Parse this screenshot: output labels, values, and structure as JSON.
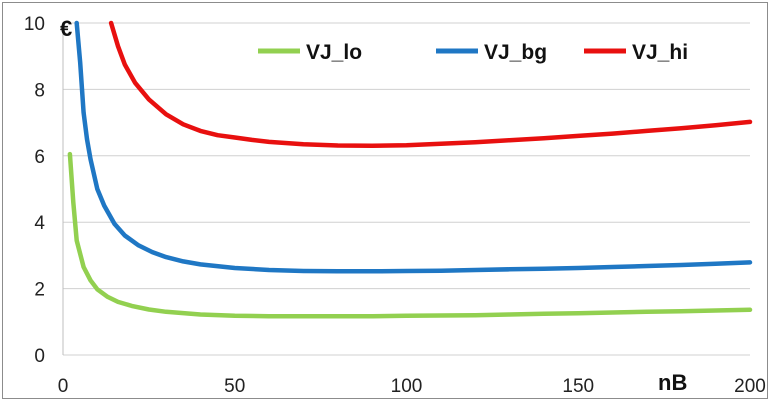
{
  "chart_data": {
    "type": "line",
    "title": "",
    "xlabel": "nB",
    "ylabel": "€",
    "xlim": [
      0,
      200
    ],
    "ylim": [
      0,
      10
    ],
    "xticks": [
      0,
      50,
      100,
      150,
      200
    ],
    "yticks": [
      0,
      2,
      4,
      6,
      8,
      10
    ],
    "grid": "horizontal",
    "legend": "top-right",
    "series": [
      {
        "name": "VJ_lo",
        "color": "#92d050",
        "points": [
          [
            2,
            6.05
          ],
          [
            3,
            4.6
          ],
          [
            4,
            3.45
          ],
          [
            6,
            2.65
          ],
          [
            8,
            2.25
          ],
          [
            10,
            1.98
          ],
          [
            13,
            1.75
          ],
          [
            16,
            1.6
          ],
          [
            20,
            1.48
          ],
          [
            25,
            1.37
          ],
          [
            30,
            1.3
          ],
          [
            40,
            1.22
          ],
          [
            50,
            1.18
          ],
          [
            60,
            1.17
          ],
          [
            70,
            1.17
          ],
          [
            80,
            1.17
          ],
          [
            90,
            1.17
          ],
          [
            100,
            1.18
          ],
          [
            110,
            1.19
          ],
          [
            120,
            1.2
          ],
          [
            130,
            1.22
          ],
          [
            140,
            1.24
          ],
          [
            150,
            1.26
          ],
          [
            160,
            1.28
          ],
          [
            170,
            1.3
          ],
          [
            180,
            1.32
          ],
          [
            190,
            1.34
          ],
          [
            200,
            1.36
          ]
        ]
      },
      {
        "name": "VJ_bg",
        "color": "#1f77c4",
        "points": [
          [
            4,
            10.0
          ],
          [
            5,
            8.8
          ],
          [
            6,
            7.3
          ],
          [
            7,
            6.5
          ],
          [
            8,
            5.9
          ],
          [
            10,
            5.0
          ],
          [
            12,
            4.5
          ],
          [
            15,
            3.95
          ],
          [
            18,
            3.6
          ],
          [
            22,
            3.3
          ],
          [
            26,
            3.1
          ],
          [
            30,
            2.95
          ],
          [
            35,
            2.82
          ],
          [
            40,
            2.73
          ],
          [
            50,
            2.62
          ],
          [
            60,
            2.56
          ],
          [
            70,
            2.53
          ],
          [
            80,
            2.52
          ],
          [
            90,
            2.52
          ],
          [
            100,
            2.53
          ],
          [
            110,
            2.54
          ],
          [
            120,
            2.56
          ],
          [
            130,
            2.58
          ],
          [
            140,
            2.6
          ],
          [
            150,
            2.62
          ],
          [
            160,
            2.65
          ],
          [
            170,
            2.68
          ],
          [
            180,
            2.71
          ],
          [
            190,
            2.75
          ],
          [
            200,
            2.79
          ]
        ]
      },
      {
        "name": "VJ_hi",
        "color": "#e8100f",
        "points": [
          [
            14,
            10.0
          ],
          [
            16,
            9.3
          ],
          [
            18,
            8.75
          ],
          [
            21,
            8.2
          ],
          [
            25,
            7.7
          ],
          [
            30,
            7.25
          ],
          [
            35,
            6.95
          ],
          [
            40,
            6.75
          ],
          [
            45,
            6.62
          ],
          [
            50,
            6.55
          ],
          [
            55,
            6.48
          ],
          [
            60,
            6.42
          ],
          [
            70,
            6.35
          ],
          [
            80,
            6.31
          ],
          [
            90,
            6.3
          ],
          [
            100,
            6.32
          ],
          [
            110,
            6.36
          ],
          [
            120,
            6.41
          ],
          [
            130,
            6.47
          ],
          [
            140,
            6.53
          ],
          [
            150,
            6.6
          ],
          [
            160,
            6.67
          ],
          [
            170,
            6.75
          ],
          [
            180,
            6.83
          ],
          [
            190,
            6.92
          ],
          [
            200,
            7.02
          ]
        ]
      }
    ]
  }
}
